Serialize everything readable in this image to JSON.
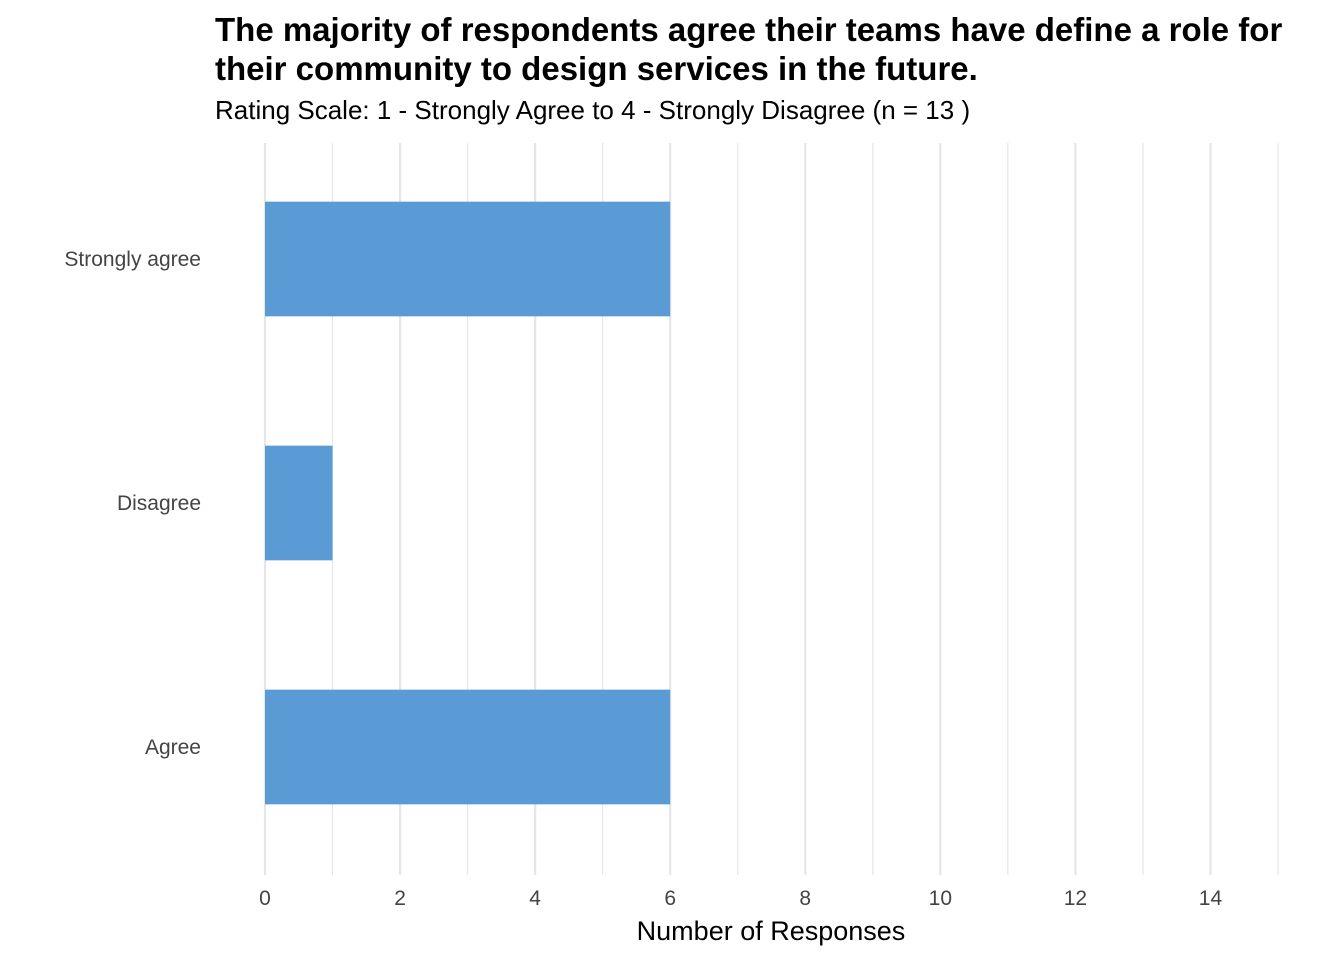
{
  "chart_data": {
    "type": "bar",
    "orientation": "horizontal",
    "title": "The majority of respondents agree their teams have define a role for their community to design services in the future.",
    "subtitle": "Rating Scale: 1 - Strongly Agree to 4 - Strongly Disagree (n = 13 )",
    "xlabel": "Number of Responses",
    "ylabel": "",
    "categories": [
      "Strongly agree",
      "Disagree",
      "Agree"
    ],
    "values": [
      6,
      1,
      6
    ],
    "xlim": [
      0,
      15
    ],
    "xticks": [
      0,
      2,
      4,
      6,
      8,
      10,
      12,
      14
    ],
    "grid": true,
    "bar_color": "#5b9bd5",
    "grid_color": "#e6e6e6"
  }
}
